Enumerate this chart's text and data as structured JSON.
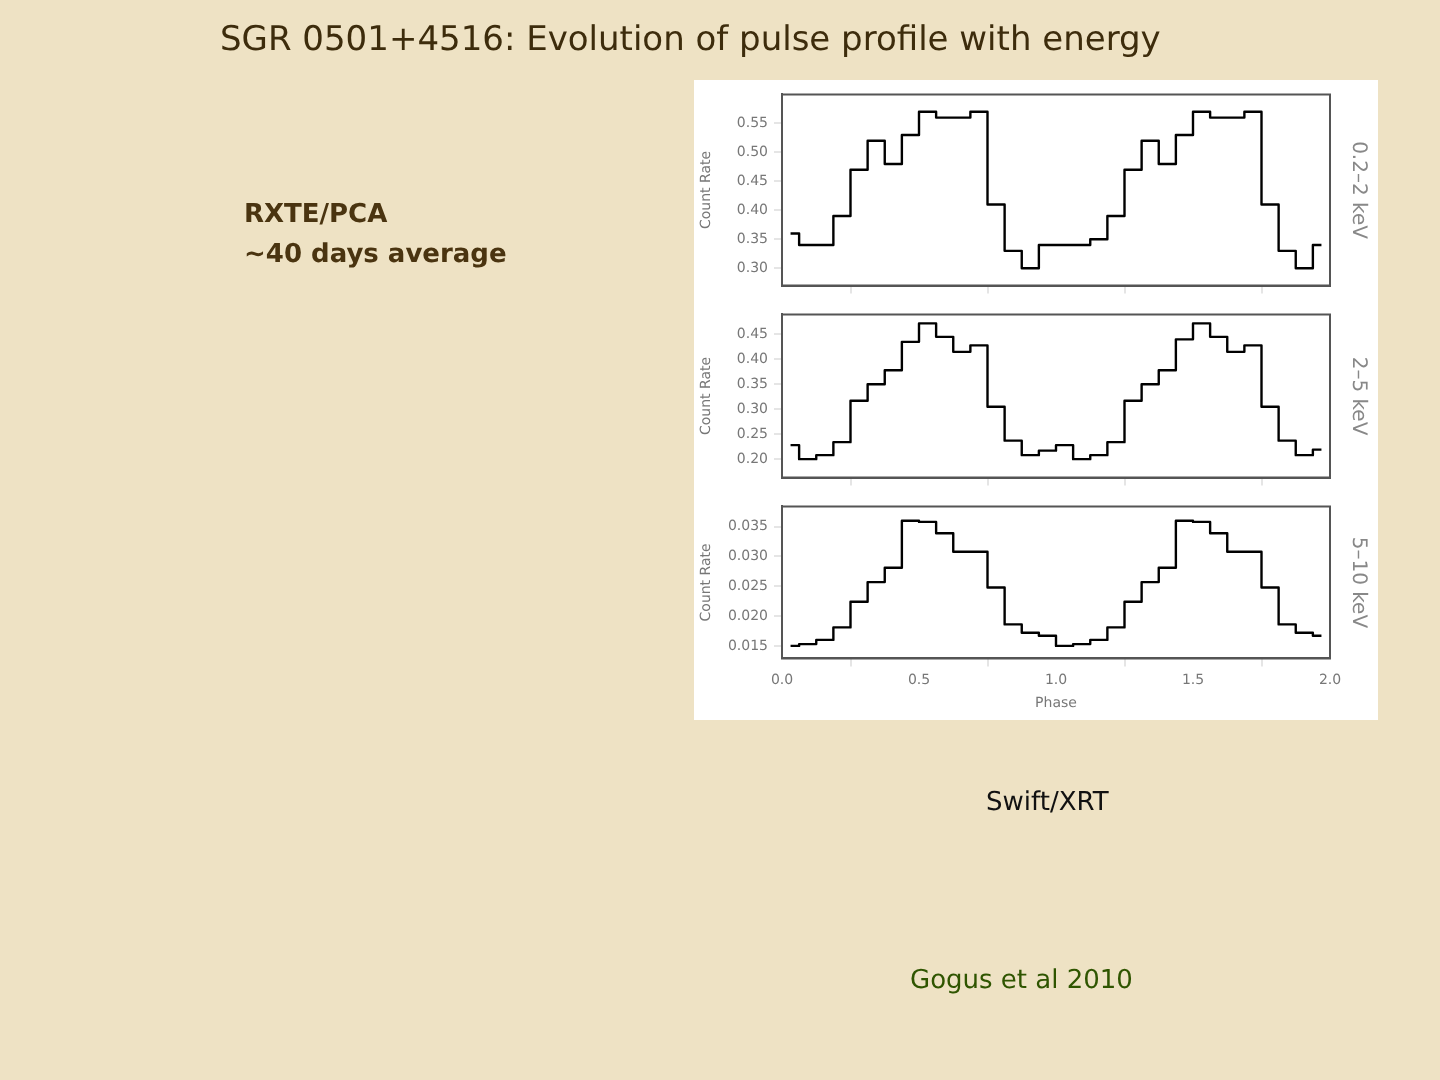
{
  "chart_data": [
    {
      "type": "step",
      "title": "SGR 0501+4516: Evolution of pulse profile with energy",
      "annotations": [
        "RXTE/PCA",
        "~40 days average",
        "Swift/XRT",
        "Gogus et al 2010"
      ],
      "ylabel": "Count Rate",
      "y2label": "0.2–2 keV",
      "x": [
        0.03125,
        0.09375,
        0.15625,
        0.21875,
        0.28125,
        0.34375,
        0.40625,
        0.46875,
        0.53125,
        0.59375,
        0.65625,
        0.71875,
        0.78125,
        0.84375,
        0.90625,
        0.96875,
        1.03125,
        1.09375,
        1.15625,
        1.21875,
        1.28125,
        1.34375,
        1.40625,
        1.46875,
        1.53125,
        1.59375,
        1.65625,
        1.71875,
        1.78125,
        1.84375,
        1.90625,
        1.96875
      ],
      "values": [
        0.36,
        0.34,
        0.34,
        0.39,
        0.47,
        0.52,
        0.48,
        0.53,
        0.57,
        0.56,
        0.56,
        0.57,
        0.41,
        0.33,
        0.3,
        0.34,
        0.34,
        0.34,
        0.35,
        0.39,
        0.47,
        0.52,
        0.48,
        0.53,
        0.57,
        0.56,
        0.56,
        0.57,
        0.41,
        0.33,
        0.3,
        0.34
      ],
      "color": "#000000",
      "xlim": [
        0,
        2
      ],
      "xticks": [
        {
          "value": 0,
          "label": null
        },
        {
          "value": 0.5,
          "label": null
        },
        {
          "value": 1,
          "label": null
        },
        {
          "value": 1.5,
          "label": null
        },
        {
          "value": 2,
          "label": null
        }
      ],
      "ylim": [
        0.27,
        0.6
      ],
      "yticks": [
        {
          "value": 0.3,
          "label": "0.30"
        },
        0.35,
        {
          "value": 0.4,
          "label": "0.40"
        },
        0.45,
        {
          "value": 0.5,
          "label": "0.50"
        },
        0.55
      ],
      "tick_labels": "y",
      "grid": false,
      "legend": false
    },
    {
      "type": "step",
      "ylabel": "Count Rate",
      "y2label": "2–5 keV",
      "x": [
        0.03125,
        0.09375,
        0.15625,
        0.21875,
        0.28125,
        0.34375,
        0.40625,
        0.46875,
        0.53125,
        0.59375,
        0.65625,
        0.71875,
        0.78125,
        0.84375,
        0.90625,
        0.96875,
        1.03125,
        1.09375,
        1.15625,
        1.21875,
        1.28125,
        1.34375,
        1.40625,
        1.46875,
        1.53125,
        1.59375,
        1.65625,
        1.71875,
        1.78125,
        1.84375,
        1.90625,
        1.96875
      ],
      "values": [
        0.228,
        0.2,
        0.208,
        0.234,
        0.317,
        0.35,
        0.378,
        0.435,
        0.472,
        0.445,
        0.415,
        0.428,
        0.305,
        0.237,
        0.208,
        0.217,
        0.228,
        0.2,
        0.208,
        0.234,
        0.317,
        0.35,
        0.378,
        0.44,
        0.472,
        0.445,
        0.415,
        0.428,
        0.305,
        0.237,
        0.208,
        0.219
      ],
      "color": "#000000",
      "xlim": [
        0,
        2
      ],
      "xticks": [
        {
          "value": 0,
          "label": null
        },
        {
          "value": 0.5,
          "label": null
        },
        {
          "value": 1,
          "label": null
        },
        {
          "value": 1.5,
          "label": null
        },
        {
          "value": 2,
          "label": null
        }
      ],
      "ylim": [
        0.163,
        0.49
      ],
      "yticks": [
        {
          "value": 0.2,
          "label": "0.20"
        },
        0.25,
        {
          "value": 0.3,
          "label": "0.30"
        },
        0.35,
        {
          "value": 0.4,
          "label": "0.40"
        },
        0.45
      ],
      "tick_labels": "y",
      "grid": false,
      "legend": false
    },
    {
      "type": "step",
      "xlabel": "Phase",
      "ylabel": "Count Rate",
      "y2label": "5–10 keV",
      "x": [
        0.03125,
        0.09375,
        0.15625,
        0.21875,
        0.28125,
        0.34375,
        0.40625,
        0.46875,
        0.53125,
        0.59375,
        0.65625,
        0.71875,
        0.78125,
        0.84375,
        0.90625,
        0.96875,
        1.03125,
        1.09375,
        1.15625,
        1.21875,
        1.28125,
        1.34375,
        1.40625,
        1.46875,
        1.53125,
        1.59375,
        1.65625,
        1.71875,
        1.78125,
        1.84375,
        1.90625,
        1.96875
      ],
      "values": [
        0.015,
        0.0153,
        0.016,
        0.0181,
        0.0224,
        0.0257,
        0.0281,
        0.036,
        0.0358,
        0.0339,
        0.0308,
        0.0308,
        0.0248,
        0.0186,
        0.0172,
        0.0167,
        0.015,
        0.0153,
        0.016,
        0.0181,
        0.0224,
        0.0257,
        0.0281,
        0.036,
        0.0358,
        0.0339,
        0.0308,
        0.0308,
        0.0248,
        0.0186,
        0.0172,
        0.0167
      ],
      "color": "#000000",
      "xlim": [
        0,
        2
      ],
      "xticks": [
        {
          "value": 0,
          "label": "0.0"
        },
        {
          "value": 0.5,
          "label": "0.5"
        },
        {
          "value": 1,
          "label": "1.0"
        },
        {
          "value": 1.5,
          "label": "1.5"
        },
        {
          "value": 2,
          "label": "2.0"
        }
      ],
      "ylim": [
        0.0129,
        0.0384
      ],
      "yticks": [
        0.015,
        {
          "value": 0.02,
          "label": "0.020"
        },
        0.025,
        {
          "value": 0.03,
          "label": "0.030"
        },
        0.035
      ],
      "grid": false,
      "legend": false
    }
  ]
}
